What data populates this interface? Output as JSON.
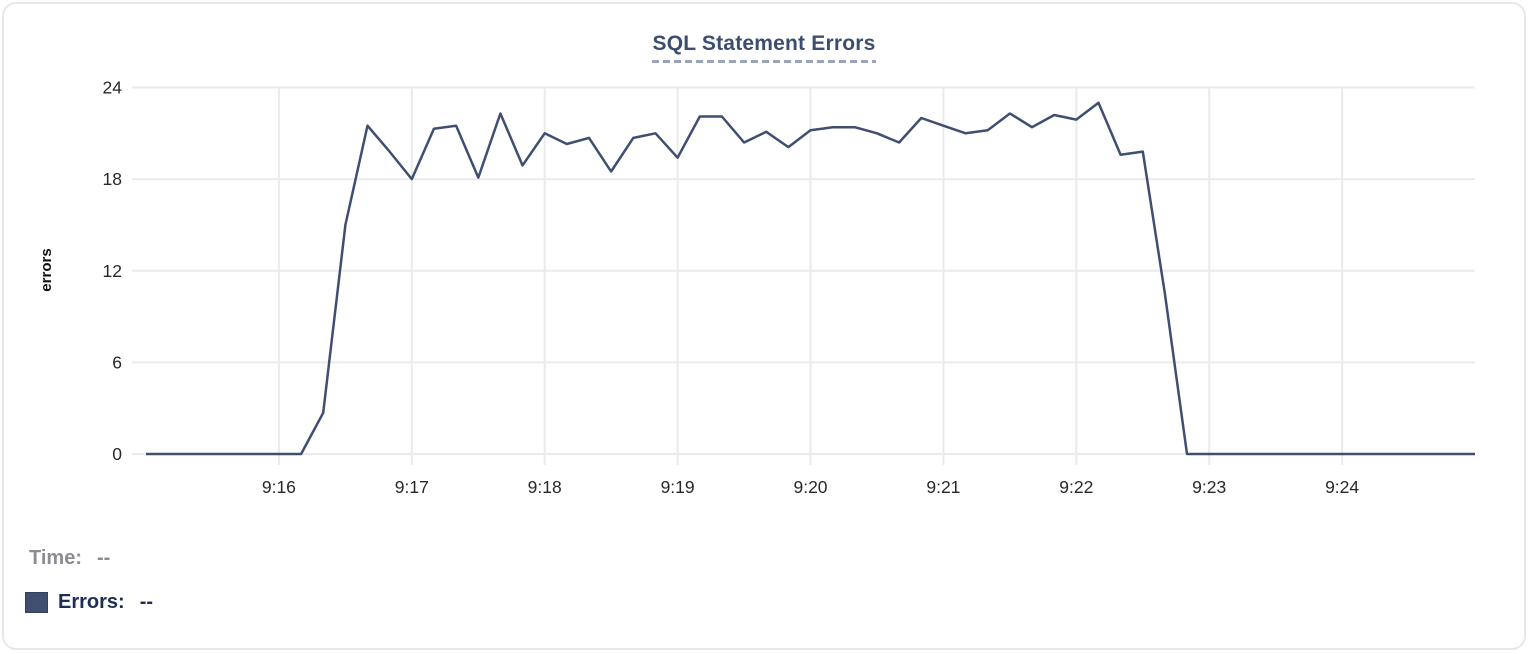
{
  "chart": {
    "readout": {
      "time_label": "Time:",
      "time_value": "--",
      "errors_label": "Errors:",
      "errors_value": "--"
    }
  },
  "colors": {
    "background": "#ffffff",
    "card_border": "#e8e8ea",
    "title_text": "#3c4e6f",
    "underline": "#9aa4ba",
    "series": "#3f4e71",
    "grid": "#ebebed",
    "tick_text": "#26282b",
    "axis_label_text": "#111111",
    "time_text": "#8b8d92",
    "errors_text": "#202e57"
  },
  "chart_data": {
    "type": "line",
    "title": "SQL Statement Errors",
    "xlabel": "",
    "ylabel": "errors",
    "ylim": [
      0,
      24
    ],
    "yticks": [
      0,
      6,
      12,
      18,
      24
    ],
    "xticks": [
      "9:16",
      "9:17",
      "9:18",
      "9:19",
      "9:20",
      "9:21",
      "9:22",
      "9:23",
      "9:24"
    ],
    "x_range": [
      "9:15:00",
      "9:25:00"
    ],
    "grid": true,
    "legend_position": "bottom-left",
    "x": [
      "9:15:00",
      "9:15:10",
      "9:15:20",
      "9:15:30",
      "9:15:40",
      "9:15:50",
      "9:16:00",
      "9:16:10",
      "9:16:20",
      "9:16:30",
      "9:16:40",
      "9:16:50",
      "9:17:00",
      "9:17:10",
      "9:17:20",
      "9:17:30",
      "9:17:40",
      "9:17:50",
      "9:18:00",
      "9:18:10",
      "9:18:20",
      "9:18:30",
      "9:18:40",
      "9:18:50",
      "9:19:00",
      "9:19:10",
      "9:19:20",
      "9:19:30",
      "9:19:40",
      "9:19:50",
      "9:20:00",
      "9:20:10",
      "9:20:20",
      "9:20:30",
      "9:20:40",
      "9:20:50",
      "9:21:00",
      "9:21:10",
      "9:21:20",
      "9:21:30",
      "9:21:40",
      "9:21:50",
      "9:22:00",
      "9:22:10",
      "9:22:20",
      "9:22:30",
      "9:22:40",
      "9:22:50",
      "9:23:00",
      "9:23:10",
      "9:23:20",
      "9:23:30",
      "9:23:40",
      "9:23:50",
      "9:24:00",
      "9:24:10",
      "9:24:20",
      "9:24:30",
      "9:24:40",
      "9:24:50",
      "9:25:00"
    ],
    "series": [
      {
        "name": "Errors",
        "values": [
          0,
          0,
          0,
          0,
          0,
          0,
          0,
          0,
          2.7,
          15,
          21.5,
          19.8,
          18,
          21.3,
          21.5,
          18.1,
          22.3,
          18.9,
          21,
          20.3,
          20.7,
          18.5,
          20.7,
          21,
          19.4,
          22.1,
          22.1,
          20.4,
          21.1,
          20.1,
          21.2,
          21.4,
          21.4,
          21,
          20.4,
          22,
          21.5,
          21,
          21.2,
          22.3,
          21.4,
          22.2,
          21.9,
          23,
          19.6,
          19.8,
          10.5,
          0,
          0,
          0,
          0,
          0,
          0,
          0,
          0,
          0,
          0,
          0,
          0,
          0,
          0
        ]
      }
    ]
  }
}
